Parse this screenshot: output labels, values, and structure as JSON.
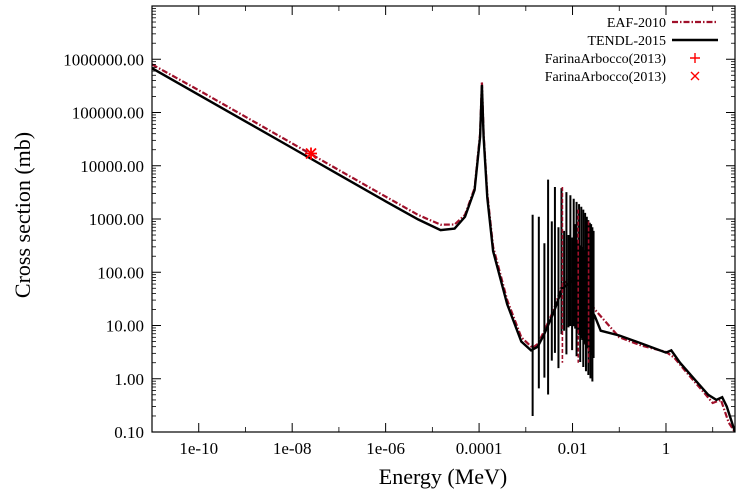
{
  "chart_data": {
    "type": "line",
    "title": "",
    "xlabel": "Energy (MeV)",
    "ylabel": "Cross section (mb)",
    "x_scale": "log",
    "y_scale": "log",
    "xlim": [
      1e-11,
      30
    ],
    "ylim": [
      0.1,
      10000000
    ],
    "grid": false,
    "legend_position": "top-right",
    "x_ticks": [
      {
        "value": 1e-10,
        "label": "1e-10"
      },
      {
        "value": 1e-08,
        "label": "1e-08"
      },
      {
        "value": 1e-06,
        "label": "1e-06"
      },
      {
        "value": 0.0001,
        "label": "0.0001"
      },
      {
        "value": 0.01,
        "label": "0.01"
      },
      {
        "value": 1,
        "label": "1"
      }
    ],
    "y_ticks": [
      {
        "value": 0.1,
        "label": "0.10"
      },
      {
        "value": 1,
        "label": "1.00"
      },
      {
        "value": 10,
        "label": "10.00"
      },
      {
        "value": 100,
        "label": "100.00"
      },
      {
        "value": 1000,
        "label": "1000.00"
      },
      {
        "value": 10000,
        "label": "10000.00"
      },
      {
        "value": 100000,
        "label": "100000.00"
      },
      {
        "value": 1000000,
        "label": "1000000.00"
      }
    ],
    "series": [
      {
        "name": "EAF-2010",
        "color": "#a0102a",
        "style": "dash-dot",
        "points": [
          [
            1e-11,
            800000
          ],
          [
            1e-10,
            262000
          ],
          [
            1e-09,
            83000
          ],
          [
            1e-08,
            26300
          ],
          [
            1e-07,
            8300
          ],
          [
            1e-06,
            2630
          ],
          [
            5e-06,
            1190
          ],
          [
            1.5e-05,
            780
          ],
          [
            3e-05,
            790
          ],
          [
            5e-05,
            1200
          ],
          [
            8e-05,
            3800
          ],
          [
            0.000105,
            40000
          ],
          [
            0.000115,
            380000
          ],
          [
            0.000125,
            40000
          ],
          [
            0.00015,
            3000
          ],
          [
            0.0002,
            300
          ],
          [
            0.0004,
            30
          ],
          [
            0.0008,
            6
          ],
          [
            0.0014,
            3.8
          ],
          [
            0.0018,
            4.5
          ],
          [
            0.0025,
            8
          ],
          [
            0.004,
            20
          ],
          [
            0.006,
            60
          ],
          [
            0.01,
            80
          ],
          [
            0.03,
            20
          ],
          [
            0.1,
            6
          ],
          [
            0.3,
            4.2
          ],
          [
            1,
            3.2
          ],
          [
            1.5,
            2.5
          ],
          [
            3,
            1.2
          ],
          [
            6,
            0.6
          ],
          [
            10,
            0.35
          ],
          [
            15,
            0.4
          ],
          [
            22,
            0.15
          ],
          [
            30,
            0.1
          ]
        ]
      },
      {
        "name": "TENDL-2015",
        "color": "#000000",
        "style": "solid",
        "points": [
          [
            1e-11,
            680000
          ],
          [
            1e-10,
            215000
          ],
          [
            1e-09,
            68000
          ],
          [
            1e-08,
            21500
          ],
          [
            1e-07,
            6800
          ],
          [
            1e-06,
            2150
          ],
          [
            5e-06,
            980
          ],
          [
            1.5e-05,
            620
          ],
          [
            3e-05,
            660
          ],
          [
            5e-05,
            1100
          ],
          [
            8e-05,
            3500
          ],
          [
            0.000105,
            35000
          ],
          [
            0.000115,
            330000
          ],
          [
            0.000125,
            35000
          ],
          [
            0.00015,
            2500
          ],
          [
            0.0002,
            250
          ],
          [
            0.0004,
            25
          ],
          [
            0.0008,
            5
          ],
          [
            0.0013,
            3.4
          ],
          [
            0.0018,
            4
          ],
          [
            0.0025,
            7
          ],
          [
            0.004,
            18
          ],
          [
            0.006,
            50
          ],
          [
            0.01,
            70
          ],
          [
            0.03,
            15
          ],
          [
            0.04,
            8
          ],
          [
            0.1,
            6.5
          ],
          [
            0.3,
            4.6
          ],
          [
            1,
            3.1
          ],
          [
            1.3,
            3.4
          ],
          [
            2,
            2
          ],
          [
            4,
            1
          ],
          [
            8,
            0.5
          ],
          [
            12,
            0.4
          ],
          [
            16,
            0.45
          ],
          [
            20,
            0.3
          ],
          [
            30,
            0.1
          ]
        ],
        "resonance_spikes": [
          [
            0.0014,
            9.5e-05
          ],
          [
            0.0019,
            0.0012
          ],
          [
            0.0025,
            0.0012
          ],
          [
            0.003,
            0.0012
          ],
          [
            0.0036,
            0.0012
          ],
          [
            0.0042,
            0.0055
          ],
          [
            0.005,
            0.0055
          ],
          [
            0.0058,
            0.0055
          ],
          [
            0.0066,
            0.0055
          ],
          [
            0.0074,
            0.0055
          ],
          [
            0.0082,
            0.0055
          ],
          [
            0.009,
            0.0055
          ],
          [
            0.0098,
            0.0055
          ],
          [
            0.0106,
            0.0055
          ],
          [
            0.0114,
            0.0055
          ],
          [
            0.0122,
            0.0055
          ],
          [
            0.013,
            0.0055
          ],
          [
            0.0138,
            0.0055
          ],
          [
            0.0146,
            0.0055
          ],
          [
            0.0154,
            0.0055
          ],
          [
            0.0162,
            0.0055
          ],
          [
            0.017,
            0.0055
          ],
          [
            0.0178,
            0.0055
          ],
          [
            0.0186,
            0.0055
          ],
          [
            0.0194,
            0.0055
          ],
          [
            0.0202,
            0.0055
          ],
          [
            0.021,
            0.0055
          ],
          [
            0.0218,
            0.0055
          ],
          [
            0.0226,
            0.0055
          ],
          [
            0.0234,
            0.0055
          ],
          [
            0.0242,
            0.0055
          ],
          [
            0.025,
            0.0055
          ],
          [
            0.0258,
            0.0055
          ],
          [
            0.0266,
            0.0055
          ],
          [
            0.0274,
            0.0055
          ],
          [
            0.0282,
            0.0055
          ]
        ]
      },
      {
        "name": "FarinaArbocco(2013)",
        "color": "#ff0000",
        "marker": "plus",
        "points": [
          [
            2.53e-08,
            17000
          ]
        ]
      },
      {
        "name": "FarinaArbocco(2013)",
        "color": "#ff0000",
        "marker": "cross",
        "points": [
          [
            2.53e-08,
            17000
          ]
        ]
      }
    ]
  }
}
